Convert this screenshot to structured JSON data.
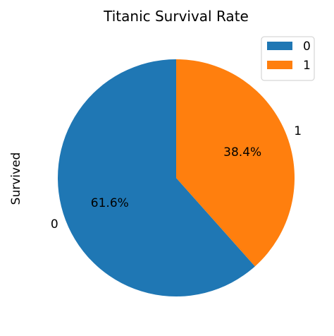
{
  "chart_data": {
    "type": "pie",
    "title": "Titanic Survival Rate",
    "ylabel": "Survived",
    "categories": [
      "0",
      "1"
    ],
    "values": [
      61.6,
      38.4
    ],
    "percent_labels": [
      "61.6%",
      "38.4%"
    ],
    "colors": [
      "#1f77b4",
      "#ff7f0e"
    ],
    "start_angle_deg": 90,
    "direction": "counterclockwise",
    "legend": {
      "placement": "top-right",
      "entries": [
        "0",
        "1"
      ]
    }
  }
}
